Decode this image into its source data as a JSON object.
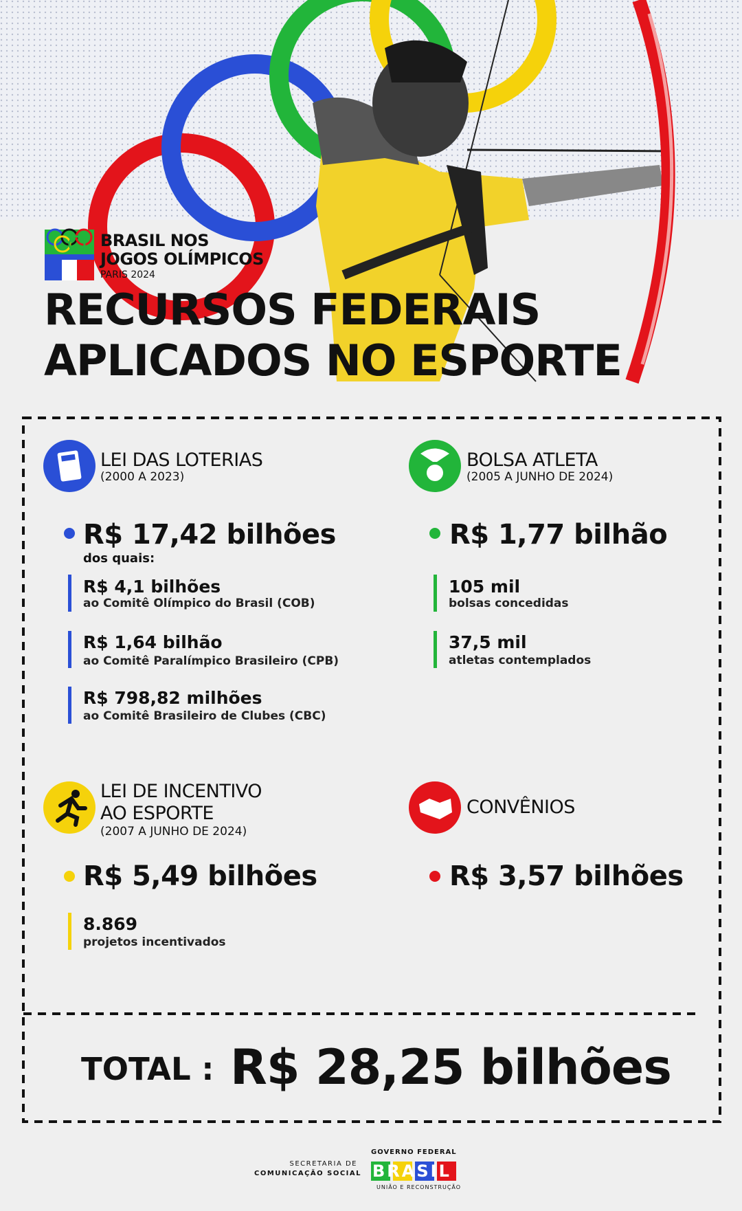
{
  "header": {
    "badge": [
      "BRASIL NOS",
      "JOGOS OLÍMPICOS",
      "PARIS 2024"
    ],
    "title": [
      "RECURSOS FEDERAIS",
      "APLICADOS NO ESPORTE"
    ]
  },
  "sections": [
    {
      "title": [
        "LEI DAS LOTERIAS"
      ],
      "period": "(2000 A 2023)",
      "amount": "R$ 17,42 bilhões",
      "note": "dos quais:",
      "items": [
        {
          "value": "R$ 4,1 bilhões",
          "label": "ao Comitê Olímpico do Brasil (COB)"
        },
        {
          "value": "R$ 1,64 bilhão",
          "label": "ao Comitê Paralímpico Brasileiro (CPB)"
        },
        {
          "value": "R$ 798,82 milhões",
          "label": "ao Comitê Brasileiro de Clubes (CBC)"
        }
      ]
    },
    {
      "title": [
        "BOLSA ATLETA"
      ],
      "period": "(2005 A JUNHO DE 2024)",
      "amount": "R$ 1,77 bilhão",
      "items": [
        {
          "value": "105 mil",
          "label": "bolsas concedidas"
        },
        {
          "value": "37,5 mil",
          "label": "atletas contemplados"
        }
      ]
    },
    {
      "title": [
        "LEI DE INCENTIVO",
        "AO ESPORTE"
      ],
      "period": "(2007 A JUNHO DE 2024)",
      "amount": "R$ 5,49 bilhões",
      "items": [
        {
          "value": "8.869",
          "label": "projetos incentivados"
        }
      ]
    },
    {
      "title": [
        "CONVÊNIOS"
      ],
      "amount": "R$ 3,57 bilhões"
    }
  ],
  "total": {
    "label": "TOTAL :",
    "value": "R$ 28,25 bilhões"
  },
  "footer": {
    "secretaria": [
      "SECRETARIA DE",
      "COMUNICAÇÃO SOCIAL"
    ],
    "governo": "GOVERNO FEDERAL",
    "brasil": "BRASIL",
    "slogan": "UNIÃO E RECONSTRUÇÃO"
  }
}
